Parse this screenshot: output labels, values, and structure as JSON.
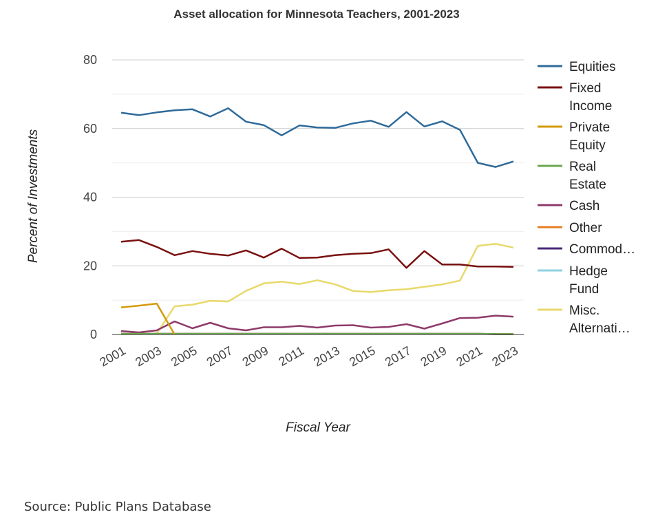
{
  "source": "Source: Public Plans Database",
  "chart_data": {
    "type": "line",
    "title": "Asset allocation for Minnesota Teachers, 2001-2023",
    "xlabel": "Fiscal Year",
    "ylabel": "Percent of Investments",
    "ylim": [
      0,
      80
    ],
    "yticks": [
      0,
      20,
      40,
      60,
      80
    ],
    "xticks": [
      "2001",
      "2003",
      "2005",
      "2007",
      "2009",
      "2011",
      "2013",
      "2015",
      "2017",
      "2019",
      "2021",
      "2023"
    ],
    "x": [
      2001,
      2002,
      2003,
      2004,
      2005,
      2006,
      2007,
      2008,
      2009,
      2010,
      2011,
      2012,
      2013,
      2014,
      2015,
      2016,
      2017,
      2018,
      2019,
      2020,
      2021,
      2022,
      2023
    ],
    "grid": true,
    "legend": "right",
    "series": [
      {
        "name": "Equities",
        "legend_lines": [
          "Equities"
        ],
        "color": "#2e6a9a",
        "values": [
          64.6,
          63.9,
          64.7,
          65.3,
          65.6,
          63.5,
          65.9,
          62.0,
          61.0,
          58.0,
          60.9,
          60.3,
          60.2,
          61.5,
          62.3,
          60.5,
          64.8,
          60.6,
          62.1,
          59.6,
          50.0,
          48.8,
          50.4
        ]
      },
      {
        "name": "Fixed Income",
        "legend_lines": [
          "Fixed",
          "Income"
        ],
        "color": "#7a1010",
        "values": [
          27.0,
          27.5,
          25.5,
          23.1,
          24.3,
          23.5,
          23.0,
          24.5,
          22.4,
          25.0,
          22.3,
          22.4,
          23.1,
          23.5,
          23.7,
          24.8,
          19.4,
          24.3,
          20.4,
          20.4,
          19.8,
          19.8,
          19.7
        ]
      },
      {
        "name": "Private Equity",
        "legend_lines": [
          "Private",
          "Equity"
        ],
        "color": "#d49a0c",
        "values": [
          7.9,
          8.4,
          9.0,
          0,
          null,
          null,
          null,
          null,
          null,
          null,
          null,
          null,
          null,
          null,
          null,
          null,
          null,
          null,
          null,
          null,
          null,
          null,
          null
        ]
      },
      {
        "name": "Real Estate",
        "legend_lines": [
          "Real",
          "Estate"
        ],
        "color": "#6aa84f",
        "values": [
          0.2,
          0.2,
          0.2,
          0.2,
          0.2,
          0.2,
          0.2,
          0.2,
          0.2,
          0.2,
          0.2,
          0.2,
          0.2,
          0.2,
          0.2,
          0.2,
          0.2,
          0.2,
          0.2,
          0.2,
          0.2,
          0.1,
          0.1
        ]
      },
      {
        "name": "Cash",
        "legend_lines": [
          "Cash"
        ],
        "color": "#8e3a6a",
        "values": [
          1.0,
          0.6,
          1.2,
          3.8,
          1.8,
          3.4,
          1.8,
          1.2,
          2.1,
          2.1,
          2.5,
          2.0,
          2.6,
          2.7,
          2.0,
          2.2,
          3.0,
          1.7,
          3.2,
          4.8,
          4.9,
          5.5,
          5.2
        ]
      },
      {
        "name": "Other",
        "legend_lines": [
          "Other"
        ],
        "color": "#e67e22",
        "values": [
          0.2,
          0.2,
          0.2,
          0.2,
          0.2,
          0.2,
          0.2,
          0.2,
          0.2,
          0.2,
          0.2,
          0.2,
          0.2,
          0.2,
          0.2,
          0.2,
          0.2,
          0.2,
          0.2,
          0.2,
          0.2,
          0.1,
          0.1
        ]
      },
      {
        "name": "Commodities",
        "legend_lines": [
          "Commod…"
        ],
        "color": "#4a2878",
        "values": [
          0.2,
          0.2,
          0.2,
          0.2,
          0.2,
          0.2,
          0.2,
          0.2,
          0.2,
          0.2,
          0.2,
          0.2,
          0.2,
          0.2,
          0.2,
          0.2,
          0.2,
          0.2,
          0.2,
          0.2,
          0.2,
          0.1,
          0.1
        ]
      },
      {
        "name": "Hedge Fund",
        "legend_lines": [
          "Hedge",
          "Fund"
        ],
        "color": "#8fd1e0",
        "values": [
          0.2,
          0.2,
          0.2,
          0.2,
          0.2,
          0.2,
          0.2,
          0.2,
          0.2,
          0.2,
          0.2,
          0.2,
          0.2,
          0.2,
          0.2,
          0.2,
          0.2,
          0.2,
          0.2,
          0.2,
          0.2,
          0.1,
          0.1
        ]
      },
      {
        "name": "Misc. Alternatives",
        "legend_lines": [
          "Misc.",
          "Alternati…"
        ],
        "color": "#e8d96a",
        "values": [
          0.1,
          0.1,
          0.3,
          8.2,
          8.7,
          9.8,
          9.6,
          12.7,
          14.9,
          15.4,
          14.7,
          15.8,
          14.6,
          12.7,
          12.4,
          12.9,
          13.2,
          13.9,
          14.6,
          15.7,
          25.8,
          26.4,
          25.3
        ]
      }
    ]
  }
}
